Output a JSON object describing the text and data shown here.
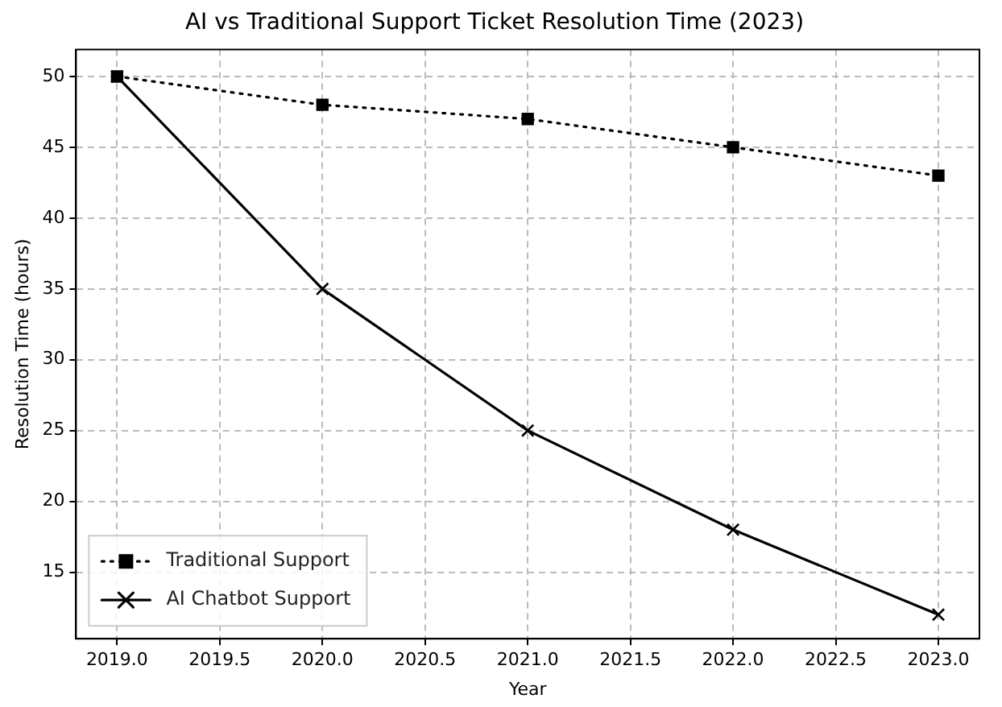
{
  "chart_data": {
    "type": "line",
    "title": "AI vs Traditional Support Ticket Resolution Time (2023)",
    "xlabel": "Year",
    "ylabel": "Resolution Time (hours)",
    "x": [
      2019,
      2020,
      2021,
      2022,
      2023
    ],
    "series": [
      {
        "name": "Traditional Support",
        "color": "#000000",
        "values": [
          50,
          48,
          47,
          45,
          43
        ],
        "marker": "square",
        "line_style": "dotted"
      },
      {
        "name": "AI Chatbot Support",
        "color": "#000000",
        "values": [
          50,
          35,
          25,
          18,
          12
        ],
        "marker": "cross",
        "line_style": "solid"
      }
    ],
    "xlim": [
      2018.8,
      2023.2
    ],
    "xticks": [
      {
        "value": 2019,
        "label": "2019.0"
      },
      {
        "value": 2019.5,
        "label": "2019.5"
      },
      {
        "value": 2020,
        "label": "2020.0"
      },
      {
        "value": 2020.5,
        "label": "2020.5"
      },
      {
        "value": 2021,
        "label": "2021.0"
      },
      {
        "value": 2021.5,
        "label": "2021.5"
      },
      {
        "value": 2022,
        "label": "2022.0"
      },
      {
        "value": 2022.5,
        "label": "2022.5"
      },
      {
        "value": 2023,
        "label": "2023.0"
      }
    ],
    "ylim": [
      10.3,
      51.9
    ],
    "yticks": [
      15,
      20,
      25,
      30,
      35,
      40,
      45,
      50
    ],
    "grid": true,
    "legend": "bottom left"
  }
}
